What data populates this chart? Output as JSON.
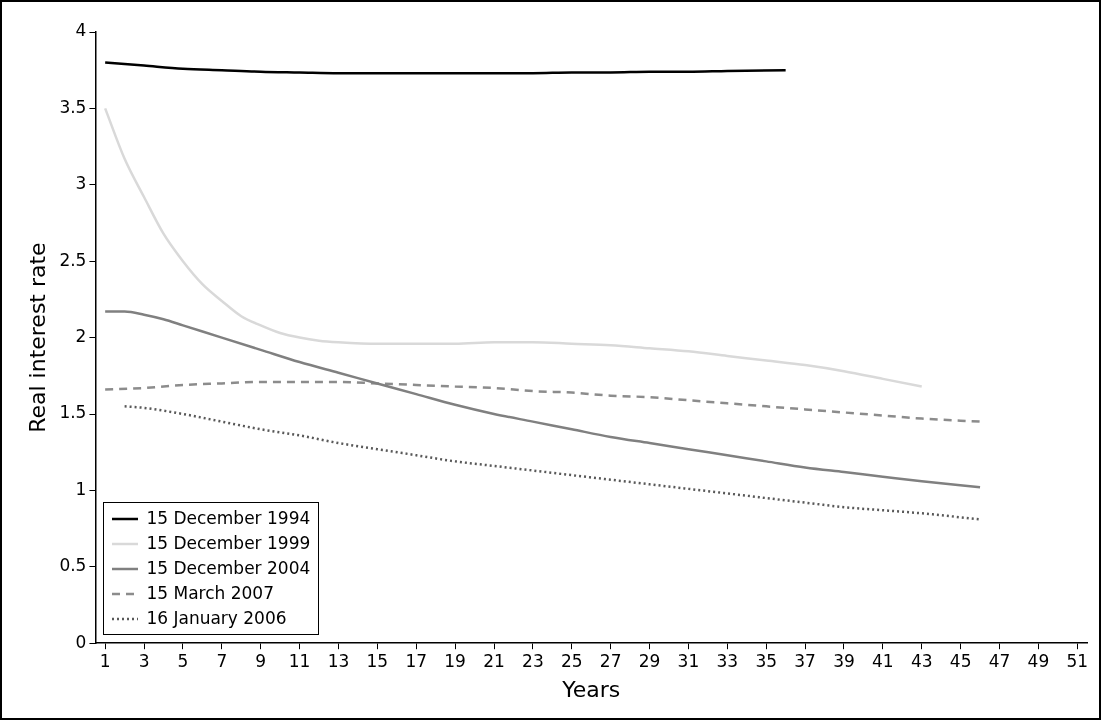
{
  "chart_data": {
    "type": "line",
    "xlabel": "Years",
    "ylabel": "Real interest rate",
    "xlim": [
      0.5,
      51.5
    ],
    "xticks": [
      1,
      3,
      5,
      7,
      9,
      11,
      13,
      15,
      17,
      19,
      21,
      23,
      25,
      27,
      29,
      31,
      33,
      35,
      37,
      39,
      41,
      43,
      45,
      47,
      49,
      51
    ],
    "ylim": [
      0,
      4
    ],
    "yticks": [
      0,
      0.5,
      1,
      1.5,
      2,
      2.5,
      3,
      3.5,
      4
    ],
    "grid": false,
    "legend": "bottom left",
    "marker": "none",
    "series": [
      {
        "name": "15 December 1994",
        "color": "#000000",
        "line_style": "solid",
        "x": [
          1,
          3,
          5,
          7,
          9,
          11,
          13,
          15,
          17,
          19,
          21,
          23,
          25,
          27,
          29,
          31,
          33,
          36
        ],
        "values": [
          3.8,
          3.78,
          3.76,
          3.75,
          3.74,
          3.735,
          3.73,
          3.73,
          3.73,
          3.73,
          3.73,
          3.73,
          3.735,
          3.735,
          3.74,
          3.74,
          3.745,
          3.75
        ]
      },
      {
        "name": "15 December 1999",
        "color": "#d9d9d9",
        "line_style": "solid",
        "x": [
          1,
          2,
          3,
          4,
          5,
          6,
          7,
          8,
          9,
          10,
          11,
          12,
          13,
          15,
          17,
          19,
          21,
          23,
          25,
          27,
          29,
          31,
          33,
          35,
          37,
          39,
          41,
          43
        ],
        "values": [
          3.5,
          3.17,
          2.92,
          2.68,
          2.5,
          2.35,
          2.24,
          2.14,
          2.08,
          2.03,
          2.0,
          1.98,
          1.97,
          1.96,
          1.96,
          1.96,
          1.97,
          1.97,
          1.96,
          1.95,
          1.93,
          1.91,
          1.88,
          1.85,
          1.82,
          1.78,
          1.73,
          1.68
        ]
      },
      {
        "name": "15 December 2004",
        "color": "#808080",
        "line_style": "solid",
        "x": [
          1,
          2,
          3,
          4,
          5,
          7,
          9,
          11,
          13,
          15,
          17,
          19,
          21,
          23,
          25,
          27,
          29,
          31,
          33,
          35,
          37,
          39,
          41,
          43,
          46
        ],
        "values": [
          2.17,
          2.17,
          2.15,
          2.12,
          2.08,
          2.0,
          1.92,
          1.84,
          1.77,
          1.7,
          1.63,
          1.56,
          1.5,
          1.45,
          1.4,
          1.35,
          1.31,
          1.27,
          1.23,
          1.19,
          1.15,
          1.12,
          1.09,
          1.06,
          1.02
        ]
      },
      {
        "name": "15 March 2007",
        "color": "#8c8c8c",
        "line_style": "dashed",
        "x": [
          1,
          3,
          5,
          7,
          9,
          11,
          13,
          15,
          17,
          19,
          21,
          23,
          25,
          27,
          29,
          31,
          33,
          35,
          37,
          39,
          41,
          43,
          46
        ],
        "values": [
          1.66,
          1.67,
          1.69,
          1.7,
          1.71,
          1.71,
          1.71,
          1.7,
          1.69,
          1.68,
          1.67,
          1.65,
          1.64,
          1.62,
          1.61,
          1.59,
          1.57,
          1.55,
          1.53,
          1.51,
          1.49,
          1.47,
          1.45
        ]
      },
      {
        "name": "16 January 2006",
        "color": "#595959",
        "line_style": "dotted",
        "x": [
          2,
          3,
          5,
          7,
          9,
          11,
          13,
          15,
          17,
          19,
          21,
          23,
          25,
          27,
          29,
          31,
          33,
          35,
          37,
          39,
          41,
          43,
          46
        ],
        "values": [
          1.55,
          1.54,
          1.5,
          1.45,
          1.4,
          1.36,
          1.31,
          1.27,
          1.23,
          1.19,
          1.16,
          1.13,
          1.1,
          1.07,
          1.04,
          1.01,
          0.98,
          0.95,
          0.92,
          0.89,
          0.87,
          0.85,
          0.81
        ]
      }
    ]
  }
}
